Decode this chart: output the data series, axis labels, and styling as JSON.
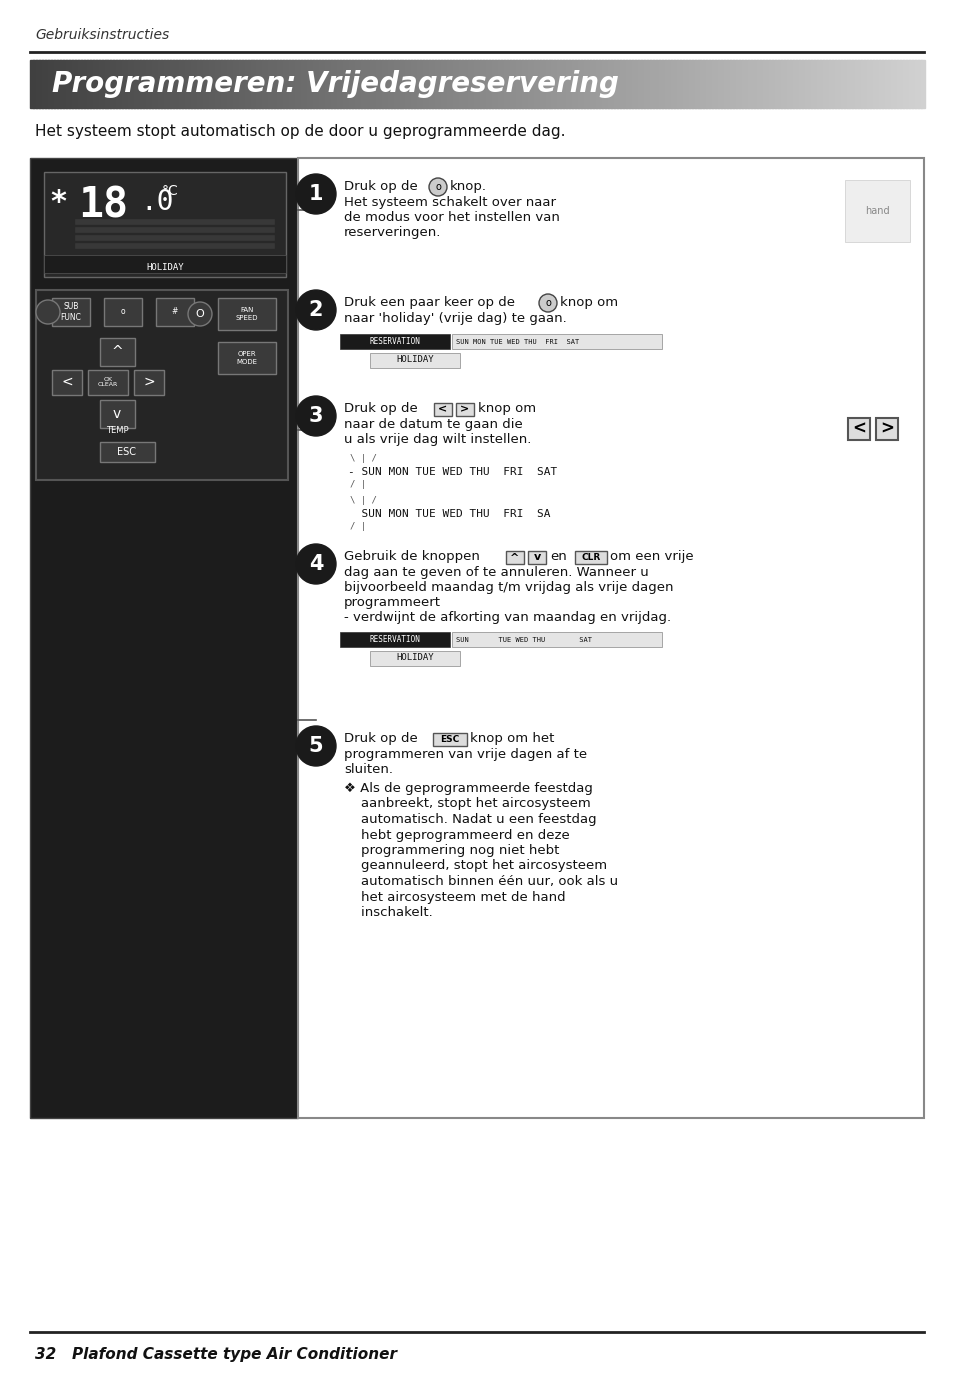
{
  "page_bg": "#ffffff",
  "header_italic": "Gebruiksinstructies",
  "title_text": "Programmeren: Vrijedagreservering",
  "title_color": "#ffffff",
  "intro_text": "Het systeem stopt automatisch op de door u geprogrammeerde dag.",
  "footer_line_color": "#222222",
  "footer_text": "32   Plafond Cassette type Air Conditioner"
}
